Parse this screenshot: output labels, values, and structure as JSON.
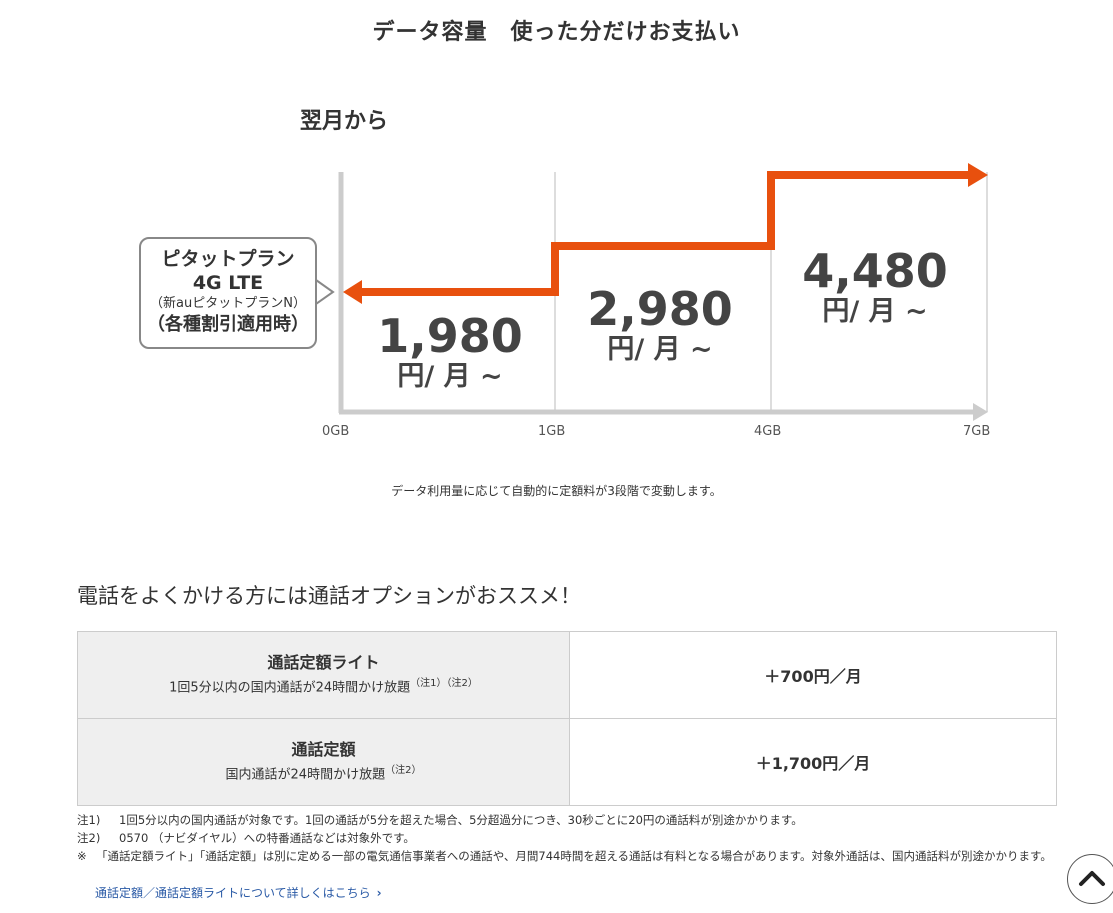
{
  "header": {
    "title": "データ容量　使った分だけお支払い",
    "from_label": "翌月から"
  },
  "plan_box": {
    "line1": "ピタットプラン",
    "line2": "4G LTE",
    "line3": "（新auピタットプランN）",
    "line4": "（各種割引適用時）"
  },
  "chart_data": {
    "type": "step",
    "x_ticks": [
      "0GB",
      "1GB",
      "4GB",
      "7GB"
    ],
    "tiers": [
      {
        "range": "0GB-1GB",
        "price": "1,980",
        "unit": "円/ 月 ~"
      },
      {
        "range": "1GB-4GB",
        "price": "2,980",
        "unit": "円/ 月 ~"
      },
      {
        "range": "4GB-7GB",
        "price": "4,480",
        "unit": "円/ 月 ~"
      }
    ],
    "colors": {
      "step_line": "#e8500e",
      "axis": "#cccccc",
      "grid": "#dddddd"
    }
  },
  "caption": "データ利用量に応じて自動的に定額料が3段階で変動します。",
  "recommend_heading": "電話をよくかける方には通話オプションがおススメ！",
  "options": [
    {
      "name": "通話定額ライト",
      "desc": "1回5分以内の国内通話が24時間かけ放題",
      "notes": "（注1）（注2）",
      "price": "＋700円／月"
    },
    {
      "name": "通話定額",
      "desc": "国内通話が24時間かけ放題",
      "notes": "（注2）",
      "price": "＋1,700円／月"
    }
  ],
  "footnotes": [
    {
      "key": "注1)",
      "text": "1回5分以内の国内通話が対象です。1回の通話が5分を超えた場合、5分超過分につき、30秒ごとに20円の通話料が別途かかります。"
    },
    {
      "key": "注2)",
      "text": "0570 （ナビダイヤル）への特番通話などは対象外です。"
    },
    {
      "key": "※",
      "text": "「通話定額ライト」「通話定額」は別に定める一部の電気通信事業者への通話や、月間744時間を超える通話は有料となる場合があります。対象外通話は、国内通話料が別途かかります。"
    }
  ],
  "details_link": "通話定額／通話定額ライトについて詳しくはこちら",
  "icons": {
    "back_to_top": "chevron-up-icon",
    "link_arrow": "chevron-right-icon"
  }
}
